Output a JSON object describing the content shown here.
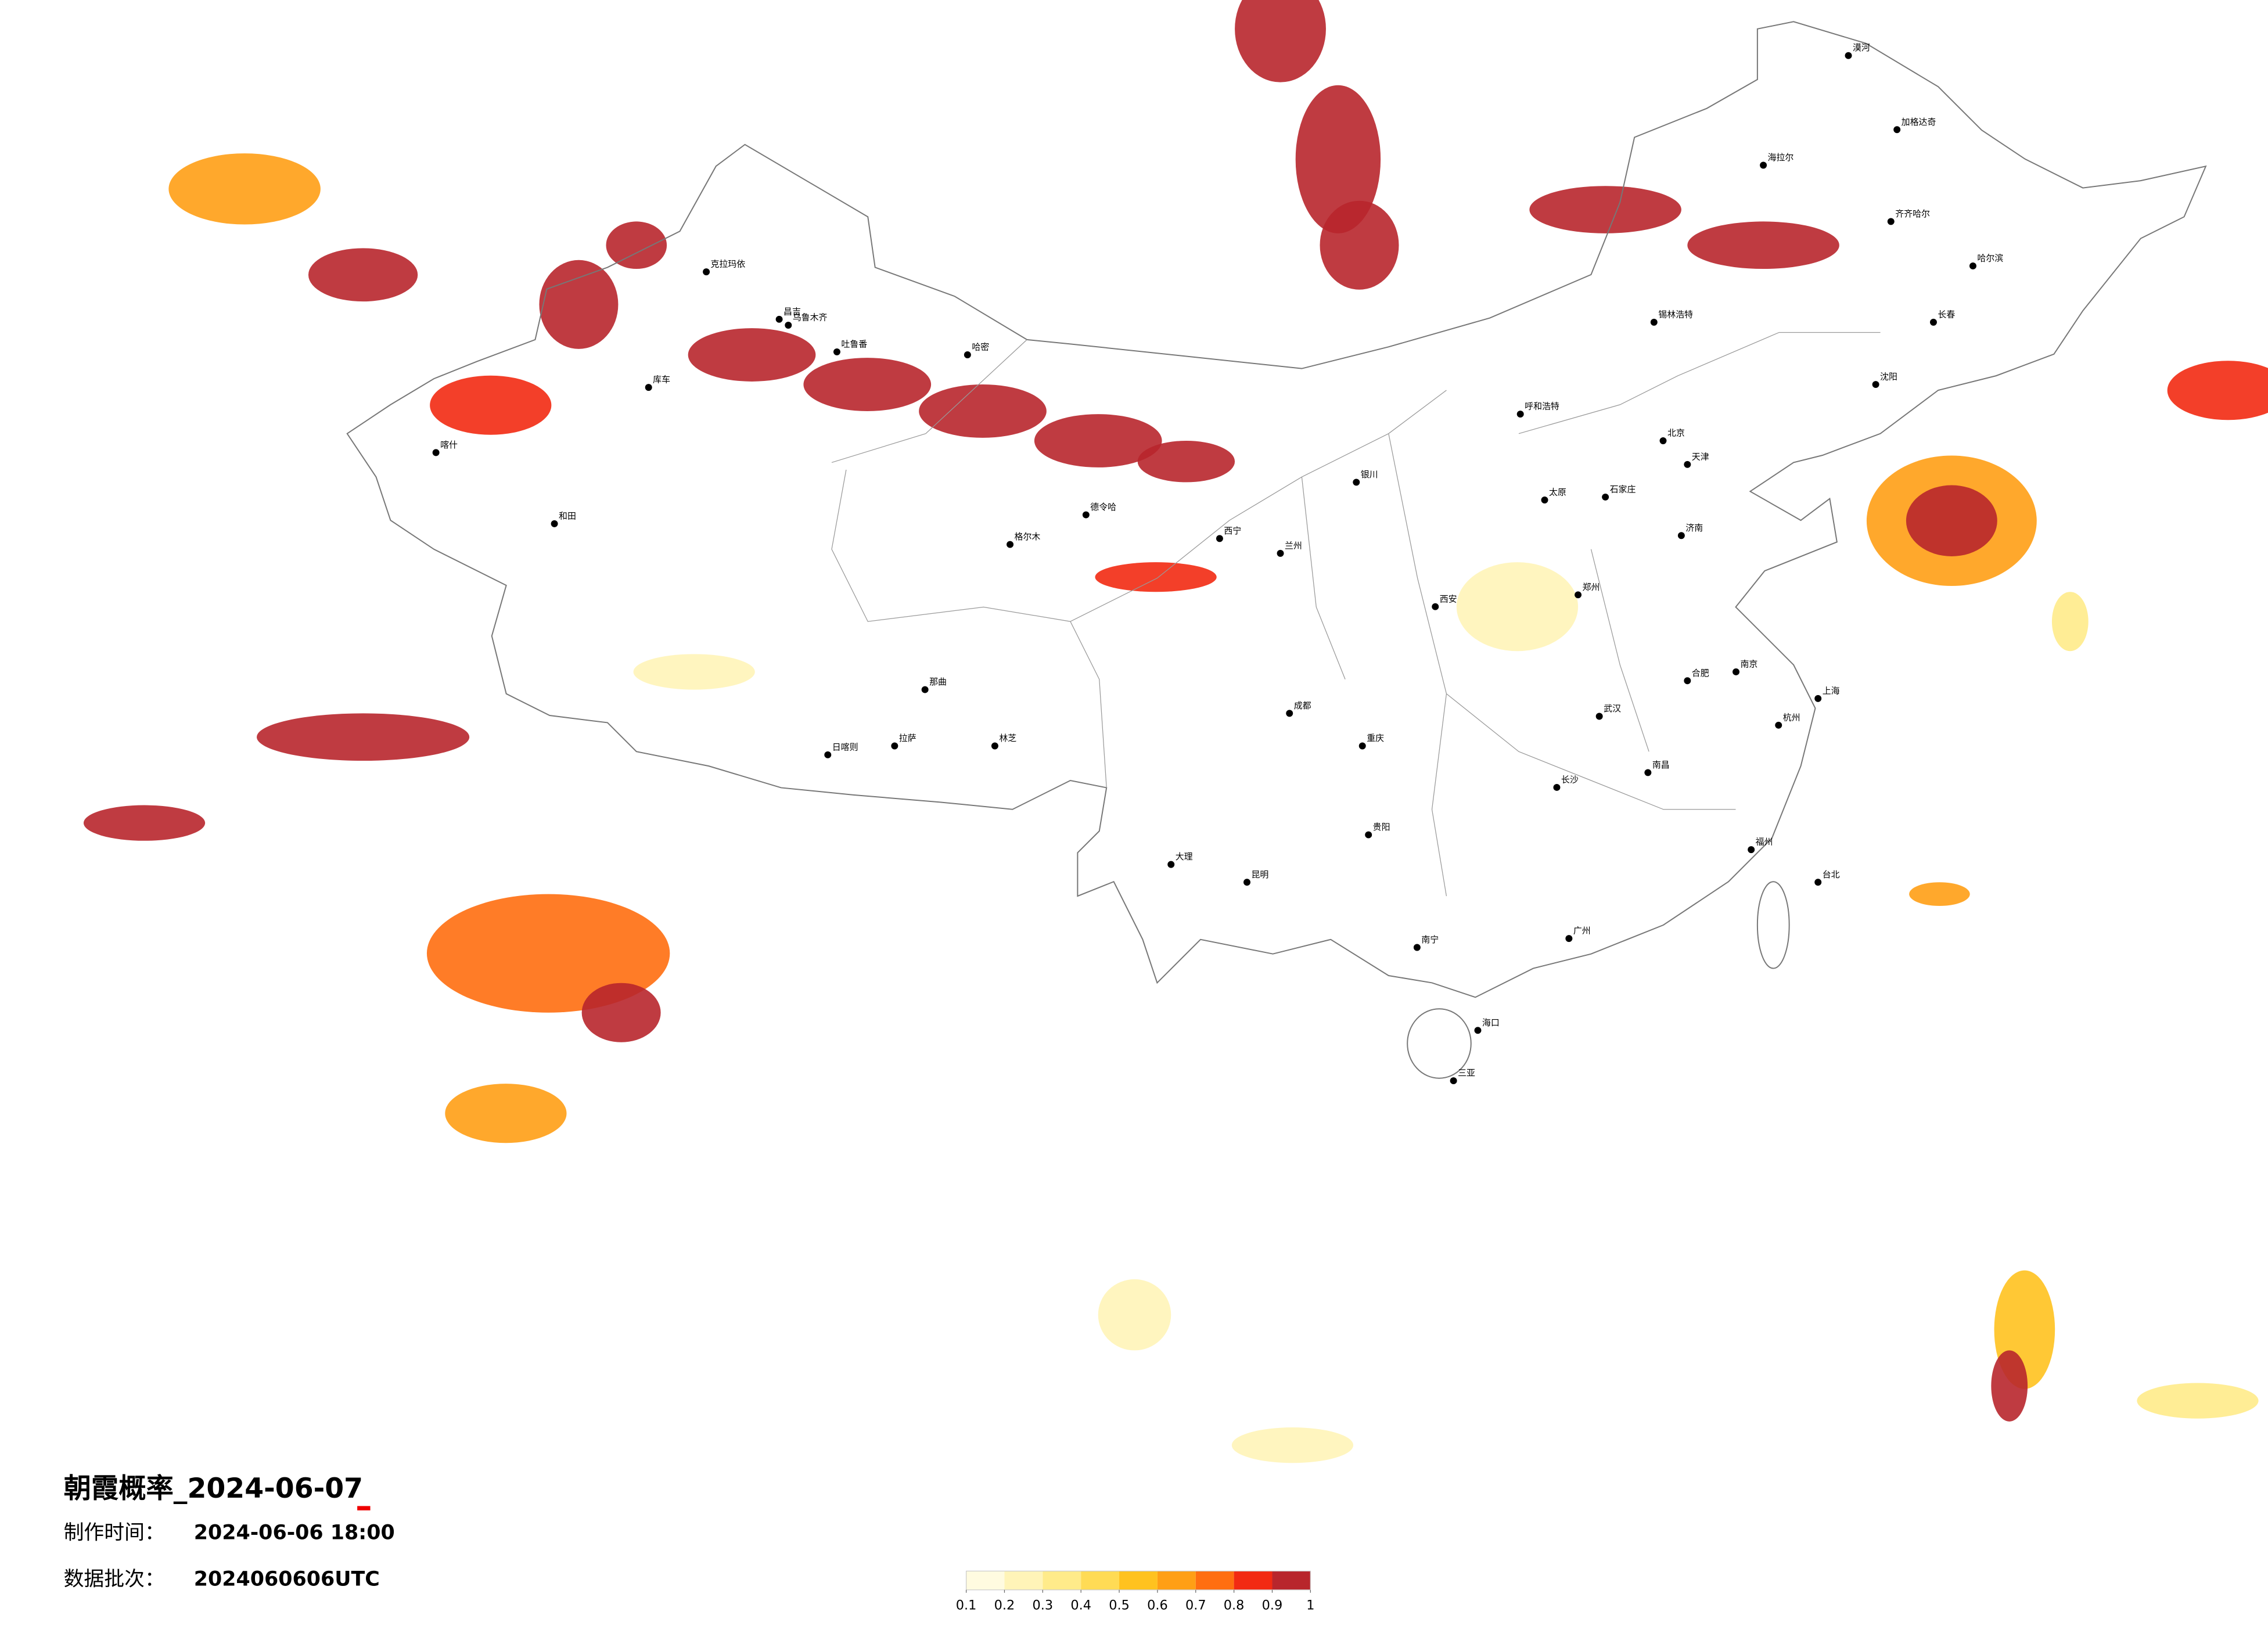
{
  "title": "朝霞概率_2024-06-07",
  "made_time_label": "制作时间：",
  "made_time": "2024-06-06 18:00",
  "batch_label": "数据批次：",
  "batch": "2024060606UTC",
  "legend": {
    "colors": [
      "#fffbe0",
      "#fff4b8",
      "#ffeb8a",
      "#ffdb55",
      "#ffc21f",
      "#ff9f15",
      "#ff6e10",
      "#f22a12",
      "#b8262c"
    ],
    "ticks": [
      0.1,
      0.2,
      0.3,
      0.4,
      0.5,
      0.6,
      0.7,
      0.8,
      0.9,
      1
    ]
  },
  "areas": [
    {
      "lon": 86.4,
      "lat": 42.8,
      "lon_radius": 2.1,
      "lat_radius": 0.9,
      "prob": 1
    },
    {
      "lon": 90.2,
      "lat": 41.8,
      "lon_radius": 2.1,
      "lat_radius": 0.9,
      "prob": 1
    },
    {
      "lon": 94.0,
      "lat": 40.9,
      "lon_radius": 2.1,
      "lat_radius": 0.9,
      "prob": 1
    },
    {
      "lon": 97.8,
      "lat": 39.9,
      "lon_radius": 2.1,
      "lat_radius": 0.9,
      "prob": 1
    },
    {
      "lon": 100.7,
      "lat": 39.2,
      "lon_radius": 1.6,
      "lat_radius": 0.7,
      "prob": 0.9
    },
    {
      "lon": 103.8,
      "lat": 53.8,
      "lon_radius": 1.5,
      "lat_radius": 1.8,
      "prob": 1
    },
    {
      "lon": 105.7,
      "lat": 49.4,
      "lon_radius": 1.4,
      "lat_radius": 2.5,
      "prob": 1
    },
    {
      "lon": 106.4,
      "lat": 46.5,
      "lon_radius": 1.3,
      "lat_radius": 1.5,
      "prob": 1
    },
    {
      "lon": 114.5,
      "lat": 47.7,
      "lon_radius": 2.5,
      "lat_radius": 0.8,
      "prob": 1
    },
    {
      "lon": 119.7,
      "lat": 46.5,
      "lon_radius": 2.5,
      "lat_radius": 0.8,
      "prob": 1
    },
    {
      "lon": 125.9,
      "lat": 37.2,
      "lon_radius": 2.8,
      "lat_radius": 2.2,
      "prob": 0.6
    },
    {
      "lon": 125.9,
      "lat": 37.2,
      "lon_radius": 1.5,
      "lat_radius": 1.2,
      "prob": 1
    },
    {
      "lon": 73.6,
      "lat": 29.9,
      "lon_radius": 3.5,
      "lat_radius": 0.8,
      "prob": 1
    },
    {
      "lon": 66.4,
      "lat": 27.0,
      "lon_radius": 2.0,
      "lat_radius": 0.6,
      "prob": 0.9
    },
    {
      "lon": 79.7,
      "lat": 22.6,
      "lon_radius": 4.0,
      "lat_radius": 2.0,
      "prob": 0.7
    },
    {
      "lon": 82.1,
      "lat": 20.6,
      "lon_radius": 1.3,
      "lat_radius": 1.0,
      "prob": 1
    },
    {
      "lon": 78.3,
      "lat": 17.2,
      "lon_radius": 2.0,
      "lat_radius": 1.0,
      "prob": 0.6
    },
    {
      "lon": 73.6,
      "lat": 45.5,
      "lon_radius": 1.8,
      "lat_radius": 0.9,
      "prob": 1
    },
    {
      "lon": 80.7,
      "lat": 44.5,
      "lon_radius": 1.3,
      "lat_radius": 1.5,
      "prob": 1
    },
    {
      "lon": 77.8,
      "lat": 41.1,
      "lon_radius": 2.0,
      "lat_radius": 1.0,
      "prob": 0.8
    },
    {
      "lon": 69.7,
      "lat": 48.4,
      "lon_radius": 2.5,
      "lat_radius": 1.2,
      "prob": 0.6
    },
    {
      "lon": 82.6,
      "lat": 46.5,
      "lon_radius": 1.0,
      "lat_radius": 0.8,
      "prob": 1
    },
    {
      "lon": 111.6,
      "lat": 34.3,
      "lon_radius": 2.0,
      "lat_radius": 1.5,
      "prob": 0.2
    },
    {
      "lon": 84.5,
      "lat": 32.1,
      "lon_radius": 2.0,
      "lat_radius": 0.6,
      "prob": 0.2
    },
    {
      "lon": 128.3,
      "lat": 9.9,
      "lon_radius": 1.0,
      "lat_radius": 2.0,
      "prob": 0.5
    },
    {
      "lon": 127.8,
      "lat": 8.0,
      "lon_radius": 0.6,
      "lat_radius": 1.2,
      "prob": 1
    },
    {
      "lon": 134.0,
      "lat": 7.5,
      "lon_radius": 2.0,
      "lat_radius": 0.6,
      "prob": 0.3
    },
    {
      "lon": 104.2,
      "lat": 6.0,
      "lon_radius": 2.0,
      "lat_radius": 0.6,
      "prob": 0.2
    },
    {
      "lon": 99.0,
      "lat": 10.4,
      "lon_radius": 1.2,
      "lat_radius": 1.2,
      "prob": 0.2
    },
    {
      "lon": 135.0,
      "lat": 41.6,
      "lon_radius": 2.0,
      "lat_radius": 1.0,
      "prob": 0.8
    },
    {
      "lon": 99.7,
      "lat": 35.3,
      "lon_radius": 2.0,
      "lat_radius": 0.5,
      "prob": 0.8
    },
    {
      "lon": 125.5,
      "lat": 24.6,
      "lon_radius": 1.0,
      "lat_radius": 0.4,
      "prob": 0.6
    },
    {
      "lon": 129.8,
      "lat": 33.8,
      "lon_radius": 0.6,
      "lat_radius": 1.0,
      "prob": 0.3
    }
  ],
  "cities": [
    {
      "name": "乌鲁木齐",
      "lon": 87.6,
      "lat": 43.8
    },
    {
      "name": "克拉玛依",
      "lon": 84.9,
      "lat": 45.6
    },
    {
      "name": "昌吉",
      "lon": 87.3,
      "lat": 44.0
    },
    {
      "name": "吐鲁番",
      "lon": 89.2,
      "lat": 42.9
    },
    {
      "name": "哈密",
      "lon": 93.5,
      "lat": 42.8
    },
    {
      "name": "库车",
      "lon": 83.0,
      "lat": 41.7
    },
    {
      "name": "喀什",
      "lon": 76.0,
      "lat": 39.5
    },
    {
      "name": "和田",
      "lon": 79.9,
      "lat": 37.1
    },
    {
      "name": "德令哈",
      "lon": 97.4,
      "lat": 37.4
    },
    {
      "name": "格尔木",
      "lon": 94.9,
      "lat": 36.4
    },
    {
      "name": "西宁",
      "lon": 101.8,
      "lat": 36.6
    },
    {
      "name": "兰州",
      "lon": 103.8,
      "lat": 36.1
    },
    {
      "name": "银川",
      "lon": 106.3,
      "lat": 38.5
    },
    {
      "name": "呼和浩特",
      "lon": 111.7,
      "lat": 40.8
    },
    {
      "name": "北京",
      "lon": 116.4,
      "lat": 39.9
    },
    {
      "name": "天津",
      "lon": 117.2,
      "lat": 39.1
    },
    {
      "name": "石家庄",
      "lon": 114.5,
      "lat": 38.0
    },
    {
      "name": "太原",
      "lon": 112.5,
      "lat": 37.9
    },
    {
      "name": "济南",
      "lon": 117.0,
      "lat": 36.7
    },
    {
      "name": "郑州",
      "lon": 113.6,
      "lat": 34.7
    },
    {
      "name": "西安",
      "lon": 108.9,
      "lat": 34.3
    },
    {
      "name": "成都",
      "lon": 104.1,
      "lat": 30.7
    },
    {
      "name": "重庆",
      "lon": 106.5,
      "lat": 29.6
    },
    {
      "name": "贵阳",
      "lon": 106.7,
      "lat": 26.6
    },
    {
      "name": "昆明",
      "lon": 102.7,
      "lat": 25.0
    },
    {
      "name": "南宁",
      "lon": 108.3,
      "lat": 22.8
    },
    {
      "name": "海口",
      "lon": 110.3,
      "lat": 20.0
    },
    {
      "name": "广州",
      "lon": 113.3,
      "lat": 23.1
    },
    {
      "name": "长沙",
      "lon": 112.9,
      "lat": 28.2
    },
    {
      "name": "武汉",
      "lon": 114.3,
      "lat": 30.6
    },
    {
      "name": "南昌",
      "lon": 115.9,
      "lat": 28.7
    },
    {
      "name": "福州",
      "lon": 119.3,
      "lat": 26.1
    },
    {
      "name": "杭州",
      "lon": 120.2,
      "lat": 30.3
    },
    {
      "name": "南京",
      "lon": 118.8,
      "lat": 32.1
    },
    {
      "name": "合肥",
      "lon": 117.2,
      "lat": 31.8
    },
    {
      "name": "上海",
      "lon": 121.5,
      "lat": 31.2
    },
    {
      "name": "台北",
      "lon": 121.5,
      "lat": 25.0
    },
    {
      "name": "沈阳",
      "lon": 123.4,
      "lat": 41.8
    },
    {
      "name": "长春",
      "lon": 125.3,
      "lat": 43.9
    },
    {
      "name": "哈尔滨",
      "lon": 126.6,
      "lat": 45.8
    },
    {
      "name": "齐齐哈尔",
      "lon": 123.9,
      "lat": 47.3
    },
    {
      "name": "海拉尔",
      "lon": 119.7,
      "lat": 49.2
    },
    {
      "name": "加格达奇",
      "lon": 124.1,
      "lat": 50.4
    },
    {
      "name": "锡林浩特",
      "lon": 116.1,
      "lat": 43.9
    },
    {
      "name": "拉萨",
      "lon": 91.1,
      "lat": 29.6
    },
    {
      "name": "日喀则",
      "lon": 88.9,
      "lat": 29.3
    },
    {
      "name": "那曲",
      "lon": 92.1,
      "lat": 31.5
    },
    {
      "name": "林芝",
      "lon": 94.4,
      "lat": 29.6
    },
    {
      "name": "大理",
      "lon": 100.2,
      "lat": 25.6
    },
    {
      "name": "三亚",
      "lon": 109.5,
      "lat": 18.3
    },
    {
      "name": "漠河",
      "lon": 122.5,
      "lat": 52.9
    }
  ]
}
